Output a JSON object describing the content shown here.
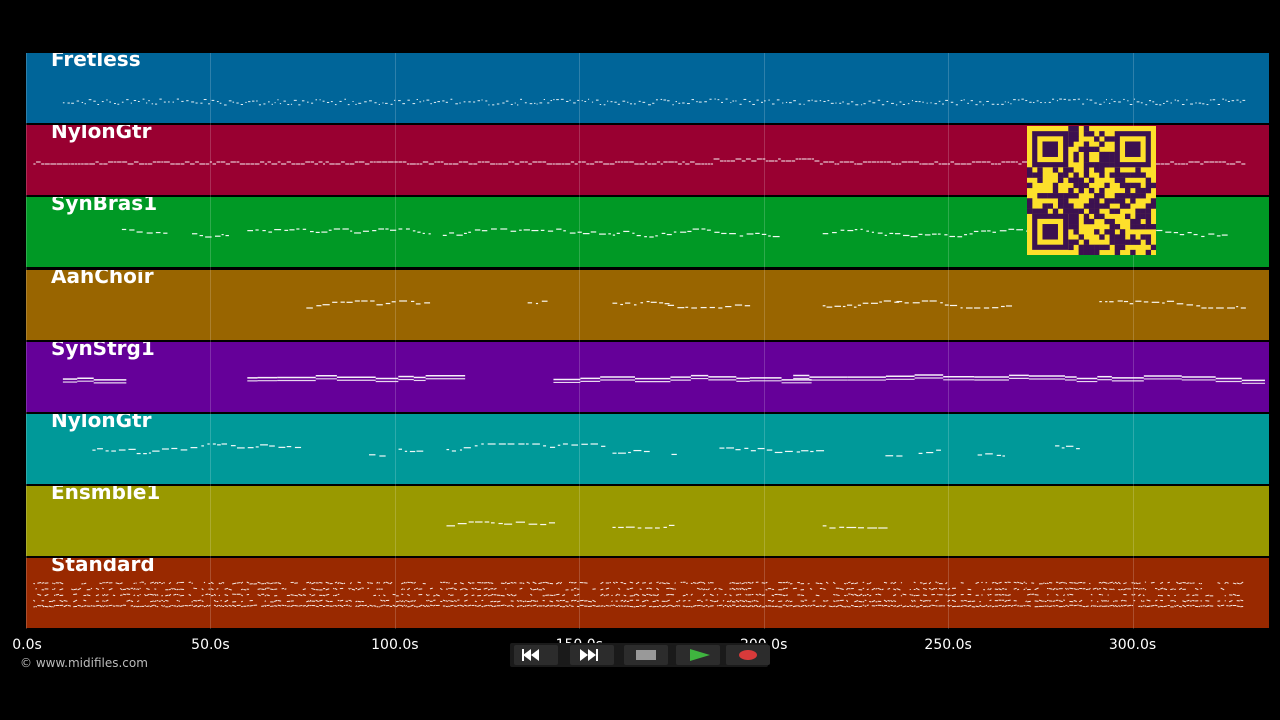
{
  "colors": {
    "background": "#000000",
    "note": "#ffffff",
    "qr_dark": "#3c1150",
    "qr_light": "#fde02b"
  },
  "tracks": [
    {
      "name": "Fretless",
      "color": "#006599"
    },
    {
      "name": "NylonGtr",
      "color": "#990031"
    },
    {
      "name": "SynBras1",
      "color": "#009925"
    },
    {
      "name": "AahChoir",
      "color": "#996500"
    },
    {
      "name": "SynStrg1",
      "color": "#650099"
    },
    {
      "name": "NylonGtr",
      "color": "#009999"
    },
    {
      "name": "Ensmble1",
      "color": "#999900"
    },
    {
      "name": "Standard",
      "color": "#992900"
    }
  ],
  "timeline": {
    "max_seconds": 337,
    "ticks": [
      "0.0s",
      "50.0s",
      "100.0s",
      "150.0s",
      "200.0s",
      "250.0s",
      "300.0s"
    ]
  },
  "copyright": "© www.midifiles.com",
  "transport": {
    "rewind": "rewind-icon",
    "fast_forward": "fast-forward-icon",
    "stop": "stop-icon",
    "play": "play-icon",
    "record": "record-icon"
  }
}
